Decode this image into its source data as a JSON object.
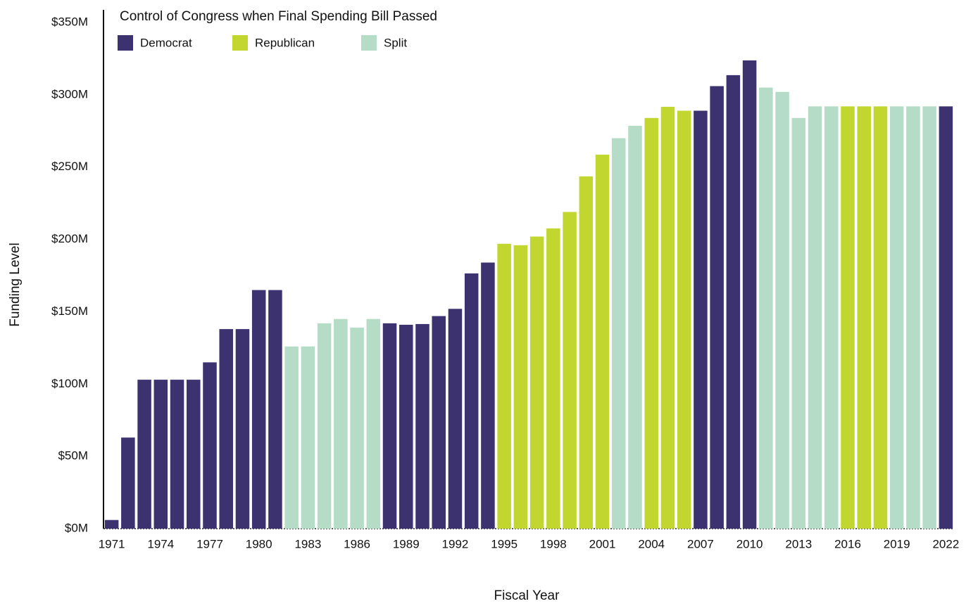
{
  "chart_data": {
    "type": "bar",
    "legend_title": "Control of Congress when Final Spending Bill Passed",
    "y_label": "Funding Level",
    "x_label": "Fiscal Year",
    "categories": [
      "1971",
      null,
      null,
      "1974",
      null,
      null,
      "1977",
      null,
      null,
      "1980",
      null,
      null,
      "1983",
      null,
      null,
      "1986",
      null,
      null,
      "1989",
      null,
      null,
      "1992",
      null,
      null,
      "1995",
      null,
      null,
      "1998",
      null,
      null,
      "2001",
      null,
      null,
      "2004",
      null,
      null,
      "2007",
      null,
      null,
      "2010",
      null,
      null,
      "2013",
      null,
      null,
      "2016",
      null,
      null,
      "2019",
      null,
      null,
      "2022"
    ],
    "series": [
      {
        "name": "Democrat",
        "color": "#3c3270",
        "values": [
          6,
          63,
          103,
          103,
          103,
          103,
          115,
          138,
          138,
          165,
          165,
          null,
          null,
          null,
          null,
          null,
          null,
          142,
          141,
          141.5,
          147,
          152,
          176.5,
          184,
          null,
          null,
          null,
          null,
          null,
          null,
          null,
          null,
          null,
          null,
          null,
          null,
          289,
          306,
          313.6,
          323.8,
          null,
          null,
          null,
          null,
          null,
          null,
          null,
          null,
          null,
          null,
          null,
          292
        ]
      },
      {
        "name": "Republican",
        "color": "#c1d72f",
        "values": [
          null,
          null,
          null,
          null,
          null,
          null,
          null,
          null,
          null,
          null,
          null,
          null,
          null,
          null,
          null,
          null,
          null,
          null,
          null,
          null,
          null,
          null,
          null,
          null,
          197,
          196,
          202,
          207.6,
          219,
          243.6,
          258.6,
          null,
          null,
          284,
          291.7,
          289,
          null,
          null,
          null,
          null,
          null,
          null,
          null,
          null,
          null,
          292,
          292,
          292,
          null,
          null,
          null,
          null
        ]
      },
      {
        "name": "Split",
        "color": "#b4dcc6",
        "values": [
          null,
          null,
          null,
          null,
          null,
          null,
          null,
          null,
          null,
          null,
          null,
          126,
          126,
          142,
          145,
          139,
          145,
          null,
          null,
          null,
          null,
          null,
          null,
          null,
          null,
          null,
          null,
          null,
          null,
          null,
          null,
          270,
          278.6,
          null,
          null,
          null,
          null,
          null,
          null,
          null,
          305,
          302,
          284,
          292,
          292,
          null,
          null,
          null,
          292,
          292,
          292,
          null
        ]
      }
    ],
    "ylim": [
      0,
      350
    ],
    "yticks": [
      {
        "value": 0,
        "label": "$0M"
      },
      {
        "value": 50,
        "label": "$50M"
      },
      {
        "value": 100,
        "label": "$100M"
      },
      {
        "value": 150,
        "label": "$150M"
      },
      {
        "value": 200,
        "label": "$200M"
      },
      {
        "value": 250,
        "label": "$250M"
      },
      {
        "value": 300,
        "label": "$300M"
      },
      {
        "value": 350,
        "label": "$350M"
      }
    ],
    "grid": false
  }
}
